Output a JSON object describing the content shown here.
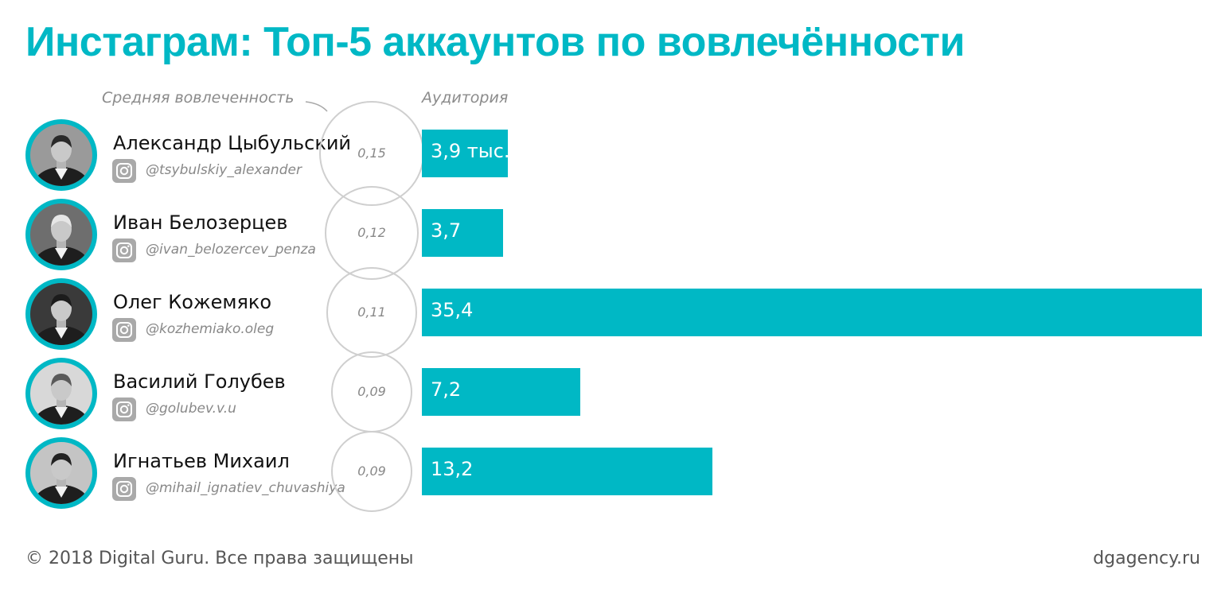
{
  "title": "Инстаграм: Топ-5 аккаунтов по вовлечённости",
  "labels": {
    "engagement": "Средняя вовлеченность",
    "audience": "Аудитория"
  },
  "colors": {
    "accent": "#00b8c5",
    "circle_outline": "#cfcfcf",
    "text_muted": "#888888"
  },
  "icons": {
    "handle": "instagram-icon"
  },
  "chart_data": {
    "type": "bar",
    "orientation": "horizontal",
    "categories": [
      "Александр Цыбульский",
      "Иван Белозерцев",
      "Олег Кожемяко",
      "Василий Голубев",
      "Игнатьев Михаил"
    ],
    "handles": [
      "@tsybulskiy_alexander",
      "@ivan_belozercev_penza",
      "@kozhemiako.oleg",
      "@golubev.v.u",
      "@mihail_ignatiev_chuvashiya"
    ],
    "series": [
      {
        "name": "Аудитория",
        "values": [
          3.9,
          3.7,
          35.4,
          7.2,
          13.2
        ],
        "labels": [
          "3,9 тыс.",
          "3,7",
          "35,4",
          "7,2",
          "13,2"
        ]
      },
      {
        "name": "Средняя вовлеченность",
        "values": [
          0.15,
          0.12,
          0.11,
          0.09,
          0.09
        ],
        "labels": [
          "0,15",
          "0,12",
          "0,11",
          "0,09",
          "0,09"
        ]
      }
    ],
    "grid": false,
    "legend": "none"
  },
  "footer": {
    "copyright": "© 2018 Digital Guru. Все права защищены",
    "site": "dgagency.ru"
  }
}
